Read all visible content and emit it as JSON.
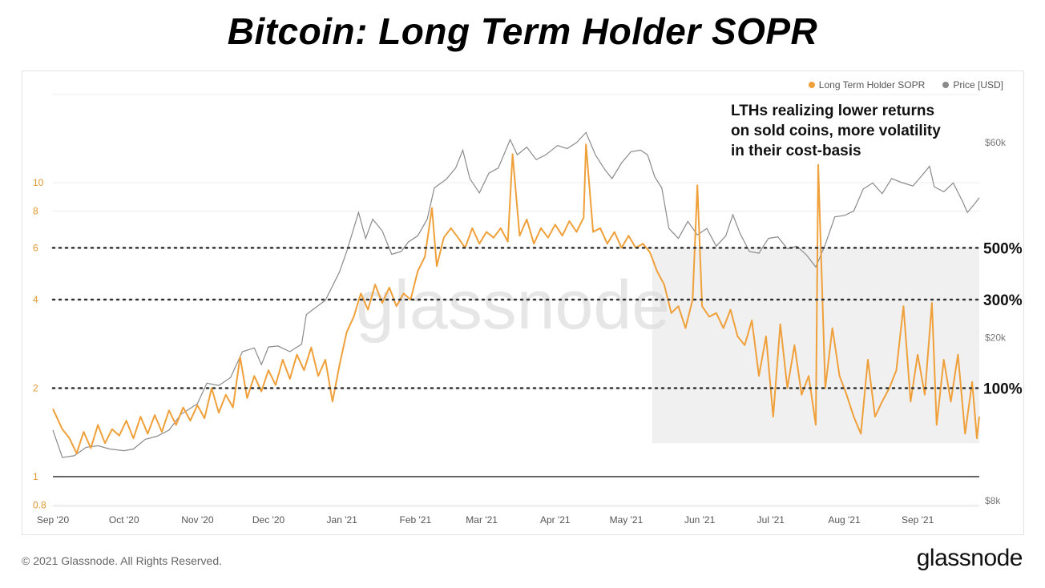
{
  "header": {
    "title": "Bitcoin: Long Term Holder SOPR"
  },
  "legend": [
    {
      "label": "Long Term Holder SOPR",
      "color": "#f0a03a"
    },
    {
      "label": "Price [USD]",
      "color": "#8a8a8a"
    }
  ],
  "annotation": {
    "lines": [
      "LTHs realizing lower returns",
      "on sold coins, more volatility",
      "in their cost-basis"
    ]
  },
  "watermark": "glassnode",
  "footer": {
    "copyright": "© 2021 Glassnode. All Rights Reserved.",
    "logo": "glassnode"
  },
  "chart_data": {
    "type": "line",
    "title": "Bitcoin: Long Term Holder SOPR",
    "left_axis": {
      "scale": "log",
      "ticks": [
        0.8,
        1,
        2,
        4,
        6,
        8,
        10
      ]
    },
    "right_axis": {
      "scale": "log",
      "ticks": [
        {
          "v": 8000,
          "label": "$8k"
        },
        {
          "v": 20000,
          "label": "$20k"
        },
        {
          "v": 60000,
          "label": "$60k"
        }
      ]
    },
    "x_ticks": [
      {
        "date": "2020-09-01",
        "label": "Sep '20"
      },
      {
        "date": "2020-10-01",
        "label": "Oct '20"
      },
      {
        "date": "2020-11-01",
        "label": "Nov '20"
      },
      {
        "date": "2020-12-01",
        "label": "Dec '20"
      },
      {
        "date": "2021-01-01",
        "label": "Jan '21"
      },
      {
        "date": "2021-02-01",
        "label": "Feb '21"
      },
      {
        "date": "2021-03-01",
        "label": "Mar '21"
      },
      {
        "date": "2021-04-01",
        "label": "Apr '21"
      },
      {
        "date": "2021-05-01",
        "label": "May '21"
      },
      {
        "date": "2021-06-01",
        "label": "Jun '21"
      },
      {
        "date": "2021-07-01",
        "label": "Jul '21"
      },
      {
        "date": "2021-08-01",
        "label": "Aug '21"
      },
      {
        "date": "2021-09-01",
        "label": "Sep '21"
      }
    ],
    "reference_lines": [
      {
        "value": 6,
        "label": "500%"
      },
      {
        "value": 4,
        "label": "300%"
      },
      {
        "value": 2,
        "label": "100%"
      }
    ],
    "baseline": 1,
    "highlight_region": {
      "x_start": "2021-05-12",
      "x_end": "2021-09-27",
      "y_low": 1.3,
      "y_high": 6
    },
    "series": [
      {
        "name": "Long Term Holder SOPR",
        "color": "#f0a03a",
        "axis": "left",
        "points": [
          [
            "2020-09-01",
            1.7
          ],
          [
            "2020-09-05",
            1.45
          ],
          [
            "2020-09-08",
            1.35
          ],
          [
            "2020-09-11",
            1.2
          ],
          [
            "2020-09-14",
            1.42
          ],
          [
            "2020-09-17",
            1.25
          ],
          [
            "2020-09-20",
            1.5
          ],
          [
            "2020-09-23",
            1.3
          ],
          [
            "2020-09-26",
            1.45
          ],
          [
            "2020-09-29",
            1.38
          ],
          [
            "2020-10-02",
            1.55
          ],
          [
            "2020-10-05",
            1.35
          ],
          [
            "2020-10-08",
            1.6
          ],
          [
            "2020-10-11",
            1.4
          ],
          [
            "2020-10-14",
            1.62
          ],
          [
            "2020-10-17",
            1.42
          ],
          [
            "2020-10-20",
            1.68
          ],
          [
            "2020-10-23",
            1.5
          ],
          [
            "2020-10-26",
            1.72
          ],
          [
            "2020-10-29",
            1.55
          ],
          [
            "2020-11-01",
            1.75
          ],
          [
            "2020-11-04",
            1.58
          ],
          [
            "2020-11-07",
            2.0
          ],
          [
            "2020-11-10",
            1.65
          ],
          [
            "2020-11-13",
            1.9
          ],
          [
            "2020-11-16",
            1.72
          ],
          [
            "2020-11-19",
            2.55
          ],
          [
            "2020-11-22",
            1.85
          ],
          [
            "2020-11-25",
            2.2
          ],
          [
            "2020-11-28",
            1.95
          ],
          [
            "2020-12-01",
            2.3
          ],
          [
            "2020-12-04",
            2.05
          ],
          [
            "2020-12-07",
            2.5
          ],
          [
            "2020-12-10",
            2.15
          ],
          [
            "2020-12-13",
            2.6
          ],
          [
            "2020-12-16",
            2.3
          ],
          [
            "2020-12-19",
            2.75
          ],
          [
            "2020-12-22",
            2.2
          ],
          [
            "2020-12-25",
            2.5
          ],
          [
            "2020-12-28",
            1.8
          ],
          [
            "2020-12-31",
            2.4
          ],
          [
            "2021-01-03",
            3.1
          ],
          [
            "2021-01-06",
            3.5
          ],
          [
            "2021-01-09",
            4.2
          ],
          [
            "2021-01-12",
            3.7
          ],
          [
            "2021-01-15",
            4.5
          ],
          [
            "2021-01-18",
            3.9
          ],
          [
            "2021-01-21",
            4.4
          ],
          [
            "2021-01-24",
            3.8
          ],
          [
            "2021-01-27",
            4.2
          ],
          [
            "2021-01-30",
            4.0
          ],
          [
            "2021-02-02",
            5.0
          ],
          [
            "2021-02-05",
            5.6
          ],
          [
            "2021-02-08",
            8.2
          ],
          [
            "2021-02-10",
            5.2
          ],
          [
            "2021-02-13",
            6.5
          ],
          [
            "2021-02-16",
            7.0
          ],
          [
            "2021-02-19",
            6.5
          ],
          [
            "2021-02-22",
            6.0
          ],
          [
            "2021-02-25",
            7.0
          ],
          [
            "2021-02-28",
            6.2
          ],
          [
            "2021-03-03",
            6.8
          ],
          [
            "2021-03-06",
            6.5
          ],
          [
            "2021-03-09",
            7.0
          ],
          [
            "2021-03-12",
            6.3
          ],
          [
            "2021-03-14",
            12.5
          ],
          [
            "2021-03-17",
            6.6
          ],
          [
            "2021-03-20",
            7.5
          ],
          [
            "2021-03-23",
            6.2
          ],
          [
            "2021-03-26",
            7.0
          ],
          [
            "2021-03-29",
            6.5
          ],
          [
            "2021-04-01",
            7.2
          ],
          [
            "2021-04-04",
            6.6
          ],
          [
            "2021-04-07",
            7.4
          ],
          [
            "2021-04-10",
            6.8
          ],
          [
            "2021-04-13",
            7.6
          ],
          [
            "2021-04-14",
            13.5
          ],
          [
            "2021-04-17",
            6.8
          ],
          [
            "2021-04-20",
            7.0
          ],
          [
            "2021-04-23",
            6.2
          ],
          [
            "2021-04-26",
            6.8
          ],
          [
            "2021-04-29",
            6.0
          ],
          [
            "2021-05-02",
            6.6
          ],
          [
            "2021-05-05",
            6.0
          ],
          [
            "2021-05-08",
            6.2
          ],
          [
            "2021-05-11",
            5.8
          ],
          [
            "2021-05-14",
            5.0
          ],
          [
            "2021-05-17",
            4.5
          ],
          [
            "2021-05-20",
            3.6
          ],
          [
            "2021-05-23",
            3.8
          ],
          [
            "2021-05-26",
            3.2
          ],
          [
            "2021-05-29",
            4.0
          ],
          [
            "2021-05-31",
            9.8
          ],
          [
            "2021-06-02",
            3.8
          ],
          [
            "2021-06-05",
            3.5
          ],
          [
            "2021-06-08",
            3.6
          ],
          [
            "2021-06-11",
            3.2
          ],
          [
            "2021-06-14",
            3.7
          ],
          [
            "2021-06-17",
            3.0
          ],
          [
            "2021-06-20",
            2.8
          ],
          [
            "2021-06-23",
            3.4
          ],
          [
            "2021-06-26",
            2.2
          ],
          [
            "2021-06-29",
            3.0
          ],
          [
            "2021-07-02",
            1.6
          ],
          [
            "2021-07-05",
            3.3
          ],
          [
            "2021-07-08",
            2.0
          ],
          [
            "2021-07-11",
            2.8
          ],
          [
            "2021-07-14",
            1.9
          ],
          [
            "2021-07-17",
            2.2
          ],
          [
            "2021-07-20",
            1.5
          ],
          [
            "2021-07-21",
            11.5
          ],
          [
            "2021-07-24",
            2.0
          ],
          [
            "2021-07-27",
            3.2
          ],
          [
            "2021-07-30",
            2.2
          ],
          [
            "2021-08-02",
            1.9
          ],
          [
            "2021-08-05",
            1.6
          ],
          [
            "2021-08-08",
            1.4
          ],
          [
            "2021-08-11",
            2.5
          ],
          [
            "2021-08-14",
            1.6
          ],
          [
            "2021-08-17",
            1.8
          ],
          [
            "2021-08-20",
            2.0
          ],
          [
            "2021-08-23",
            2.3
          ],
          [
            "2021-08-26",
            3.8
          ],
          [
            "2021-08-29",
            1.8
          ],
          [
            "2021-09-01",
            2.6
          ],
          [
            "2021-09-04",
            1.9
          ],
          [
            "2021-09-07",
            3.9
          ],
          [
            "2021-09-09",
            1.5
          ],
          [
            "2021-09-12",
            2.5
          ],
          [
            "2021-09-15",
            1.8
          ],
          [
            "2021-09-18",
            2.6
          ],
          [
            "2021-09-21",
            1.4
          ],
          [
            "2021-09-24",
            2.1
          ],
          [
            "2021-09-26",
            1.35
          ],
          [
            "2021-09-27",
            1.6
          ]
        ]
      },
      {
        "name": "Price [USD]",
        "color": "#8a8a8a",
        "axis": "right",
        "points": [
          [
            "2020-09-01",
            11900
          ],
          [
            "2020-09-05",
            10200
          ],
          [
            "2020-09-10",
            10300
          ],
          [
            "2020-09-15",
            10800
          ],
          [
            "2020-09-20",
            10900
          ],
          [
            "2020-09-25",
            10700
          ],
          [
            "2020-10-01",
            10600
          ],
          [
            "2020-10-05",
            10700
          ],
          [
            "2020-10-10",
            11300
          ],
          [
            "2020-10-15",
            11500
          ],
          [
            "2020-10-20",
            11900
          ],
          [
            "2020-10-25",
            13000
          ],
          [
            "2020-11-01",
            13800
          ],
          [
            "2020-11-05",
            15500
          ],
          [
            "2020-11-10",
            15300
          ],
          [
            "2020-11-15",
            16000
          ],
          [
            "2020-11-20",
            18500
          ],
          [
            "2020-11-25",
            18900
          ],
          [
            "2020-11-28",
            17200
          ],
          [
            "2020-12-01",
            19000
          ],
          [
            "2020-12-05",
            19100
          ],
          [
            "2020-12-10",
            18500
          ],
          [
            "2020-12-15",
            19300
          ],
          [
            "2020-12-17",
            22800
          ],
          [
            "2020-12-20",
            23500
          ],
          [
            "2020-12-25",
            24700
          ],
          [
            "2020-12-31",
            29000
          ],
          [
            "2021-01-03",
            32500
          ],
          [
            "2021-01-08",
            40500
          ],
          [
            "2021-01-11",
            35000
          ],
          [
            "2021-01-14",
            39000
          ],
          [
            "2021-01-18",
            36500
          ],
          [
            "2021-01-22",
            32000
          ],
          [
            "2021-01-26",
            32500
          ],
          [
            "2021-01-29",
            34300
          ],
          [
            "2021-02-02",
            35500
          ],
          [
            "2021-02-06",
            39000
          ],
          [
            "2021-02-09",
            46500
          ],
          [
            "2021-02-14",
            48800
          ],
          [
            "2021-02-18",
            52000
          ],
          [
            "2021-02-21",
            57500
          ],
          [
            "2021-02-24",
            49000
          ],
          [
            "2021-02-28",
            45200
          ],
          [
            "2021-03-04",
            50500
          ],
          [
            "2021-03-08",
            52000
          ],
          [
            "2021-03-13",
            61000
          ],
          [
            "2021-03-16",
            56000
          ],
          [
            "2021-03-20",
            58500
          ],
          [
            "2021-03-24",
            54500
          ],
          [
            "2021-03-28",
            56000
          ],
          [
            "2021-04-02",
            59000
          ],
          [
            "2021-04-06",
            58000
          ],
          [
            "2021-04-10",
            60000
          ],
          [
            "2021-04-14",
            63500
          ],
          [
            "2021-04-18",
            56000
          ],
          [
            "2021-04-22",
            51500
          ],
          [
            "2021-04-25",
            49000
          ],
          [
            "2021-04-29",
            53500
          ],
          [
            "2021-05-03",
            57000
          ],
          [
            "2021-05-07",
            57500
          ],
          [
            "2021-05-10",
            56000
          ],
          [
            "2021-05-13",
            49500
          ],
          [
            "2021-05-16",
            46500
          ],
          [
            "2021-05-19",
            37000
          ],
          [
            "2021-05-23",
            35000
          ],
          [
            "2021-05-27",
            38500
          ],
          [
            "2021-05-31",
            35700
          ],
          [
            "2021-06-04",
            37000
          ],
          [
            "2021-06-08",
            33500
          ],
          [
            "2021-06-12",
            35500
          ],
          [
            "2021-06-15",
            40000
          ],
          [
            "2021-06-18",
            36000
          ],
          [
            "2021-06-22",
            32500
          ],
          [
            "2021-06-26",
            32200
          ],
          [
            "2021-06-30",
            35000
          ],
          [
            "2021-07-04",
            35300
          ],
          [
            "2021-07-08",
            33000
          ],
          [
            "2021-07-12",
            33500
          ],
          [
            "2021-07-16",
            31900
          ],
          [
            "2021-07-20",
            29800
          ],
          [
            "2021-07-24",
            33800
          ],
          [
            "2021-07-28",
            39500
          ],
          [
            "2021-08-01",
            39800
          ],
          [
            "2021-08-05",
            40800
          ],
          [
            "2021-08-09",
            46200
          ],
          [
            "2021-08-13",
            47800
          ],
          [
            "2021-08-17",
            45000
          ],
          [
            "2021-08-21",
            49000
          ],
          [
            "2021-08-25",
            48000
          ],
          [
            "2021-08-30",
            47000
          ],
          [
            "2021-09-03",
            50000
          ],
          [
            "2021-09-06",
            52500
          ],
          [
            "2021-09-08",
            46800
          ],
          [
            "2021-09-12",
            45500
          ],
          [
            "2021-09-16",
            47800
          ],
          [
            "2021-09-20",
            43000
          ],
          [
            "2021-09-22",
            40500
          ],
          [
            "2021-09-25",
            42500
          ],
          [
            "2021-09-27",
            44000
          ]
        ]
      }
    ]
  }
}
